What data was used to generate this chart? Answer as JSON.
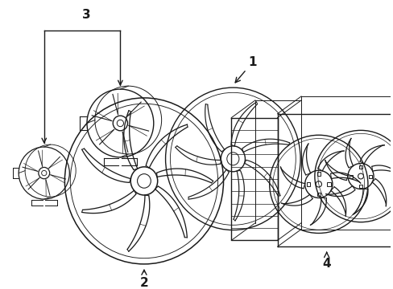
{
  "background_color": "#ffffff",
  "line_color": "#1a1a1a",
  "line_width": 1.0,
  "fig_width": 4.89,
  "fig_height": 3.6,
  "dpi": 100,
  "label_fontsize": 10
}
